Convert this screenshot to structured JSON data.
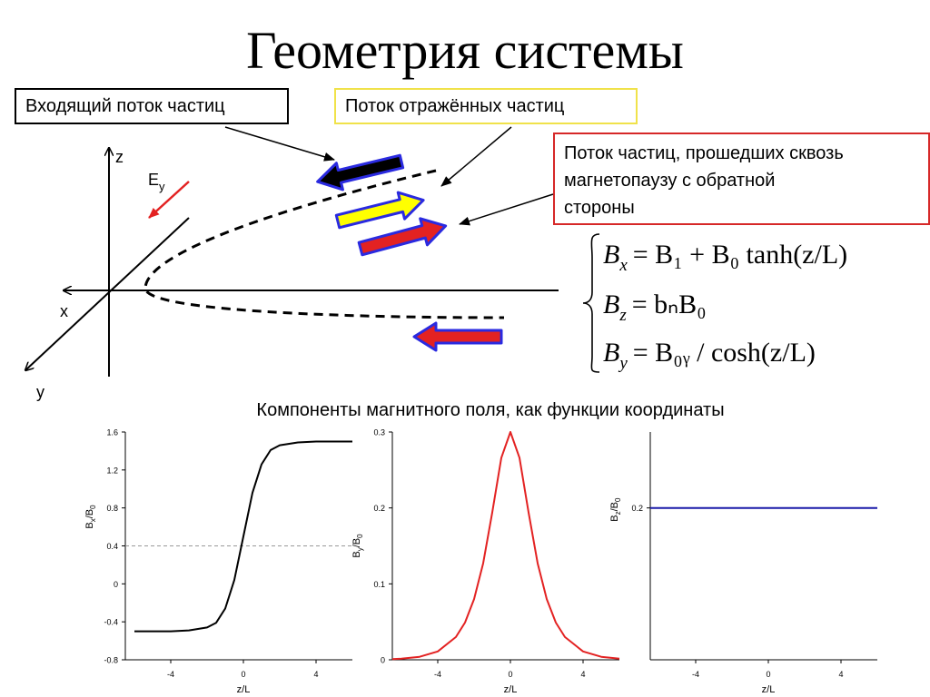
{
  "title": "Геометрия системы",
  "callouts": {
    "incoming": "Входящий поток частиц",
    "reflected": "Поток отражённых частиц",
    "transmitted": "Поток частиц, прошедших сквозь\nмагнетопаузу с обратной\nстороны"
  },
  "axes3d": {
    "x": "x",
    "y": "y",
    "z": "z",
    "e_field": "E",
    "e_field_sub": "y"
  },
  "equations": [
    {
      "lhs": "B",
      "lhs_sub": "x",
      "rhs": "= B₁ + B₀ tanh(z/L)"
    },
    {
      "lhs": "B",
      "lhs_sub": "z",
      "rhs": "= bₙB₀"
    },
    {
      "lhs": "B",
      "lhs_sub": "y",
      "rhs": "= B₀ᵧ / cosh(z/L)"
    }
  ],
  "subtitle": "Компоненты магнитного поля, как функции координаты",
  "colors": {
    "black": "#000000",
    "red": "#e32222",
    "blue": "#1a1aa8",
    "yellow": "#ffff00",
    "arrow_border": "#2a2ae0",
    "dash_ref": "#999999"
  },
  "chart_data": [
    {
      "type": "line",
      "function": "Bx/B0 = 0.5 + 1.0*tanh(z/L)",
      "x": [
        -6,
        -5,
        -4,
        -3,
        -2,
        -1.5,
        -1,
        -0.5,
        0,
        0.5,
        1,
        1.5,
        2,
        3,
        4,
        5,
        6
      ],
      "y": [
        -0.5,
        -0.5,
        -0.5,
        -0.49,
        -0.46,
        -0.41,
        -0.26,
        0.04,
        0.5,
        0.96,
        1.26,
        1.41,
        1.46,
        1.49,
        1.5,
        1.5,
        1.5
      ],
      "xlim": [
        -6.5,
        6
      ],
      "ylim": [
        -0.8,
        1.6
      ],
      "xticks": [
        "-4",
        "0",
        "4"
      ],
      "yticks": [
        "1.6",
        "1.2",
        "0.8",
        "0.4",
        "0",
        "-0.4",
        "-0.8"
      ],
      "xlabel": "z/L",
      "ylabel": "B",
      "ylabel_sub": "x",
      "ylabel_den": "/B",
      "ylabel_den_sub": "0",
      "ref_line": 0.4,
      "color": "#000000"
    },
    {
      "type": "line",
      "function": "By/B0 = 0.3/cosh(z/L)",
      "x": [
        -6.5,
        -6,
        -5,
        -4,
        -3,
        -2.5,
        -2,
        -1.5,
        -1,
        -0.5,
        0,
        0.5,
        1,
        1.5,
        2,
        2.5,
        3,
        4,
        5,
        6
      ],
      "y": [
        0.0009,
        0.0015,
        0.004,
        0.011,
        0.03,
        0.049,
        0.08,
        0.127,
        0.194,
        0.266,
        0.3,
        0.266,
        0.194,
        0.127,
        0.08,
        0.049,
        0.03,
        0.011,
        0.004,
        0.0015
      ],
      "xlim": [
        -6.5,
        6
      ],
      "ylim": [
        0,
        0.3
      ],
      "xticks": [
        "-4",
        "0",
        "4"
      ],
      "yticks": [
        "0.3",
        "0.2",
        "0.1",
        "0"
      ],
      "xlabel": "z/L",
      "ylabel": "B",
      "ylabel_sub": "y",
      "ylabel_den": "/B",
      "ylabel_den_sub": "0",
      "color": "#e32222"
    },
    {
      "type": "line",
      "function": "Bz/B0 = 0.2",
      "x": [
        -6.5,
        6
      ],
      "y": [
        0.2,
        0.2
      ],
      "xlim": [
        -6.5,
        6
      ],
      "ylim": [
        0.0,
        0.3
      ],
      "xticks": [
        "-4",
        "0",
        "4"
      ],
      "yticks": [
        "0.2"
      ],
      "xlabel": "z/L",
      "ylabel": "B",
      "ylabel_sub": "z",
      "ylabel_den": "/B",
      "ylabel_den_sub": "0",
      "color": "#1a1aa8"
    }
  ]
}
